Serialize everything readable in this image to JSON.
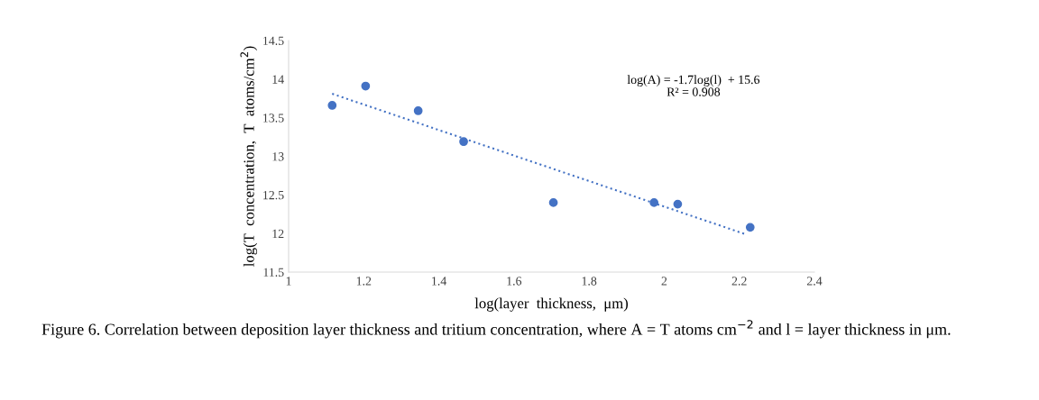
{
  "chart_data": {
    "type": "scatter",
    "xlabel": "log(layer  thickness,  μm)",
    "ylabel": "log(T  concentration,  T  atoms/cm$^{2}$)",
    "xlim": [
      1,
      2.4
    ],
    "xticks": [
      1,
      1.2,
      1.4,
      1.6,
      1.8,
      2,
      2.2,
      2.4
    ],
    "ylim": [
      11.5,
      14.5
    ],
    "yticks": [
      11.5,
      12,
      12.5,
      13,
      13.5,
      14,
      14.5
    ],
    "grid": false,
    "series": [
      {
        "color": "#4472c4",
        "marker": "circle",
        "x": [
          1.116,
          1.205,
          1.345,
          1.466,
          1.705,
          1.973,
          2.036,
          2.229
        ],
        "values": [
          13.66,
          13.91,
          13.59,
          13.19,
          12.4,
          12.4,
          12.38,
          12.08
        ]
      },
      {
        "type": "line",
        "color": "#4472c4",
        "line_style": "dotted",
        "x": [
          1.116,
          2.217
        ],
        "values": [
          13.81,
          11.99
        ]
      }
    ],
    "annotations": [
      "log(A) = -1.7log(l)  + 15.6\nR² = 0.908",
      "Figure 6. Correlation between deposition layer thickness and tritium concentration, where A = T atoms cm$^{−2}$ and l = layer thickness in μm."
    ]
  }
}
